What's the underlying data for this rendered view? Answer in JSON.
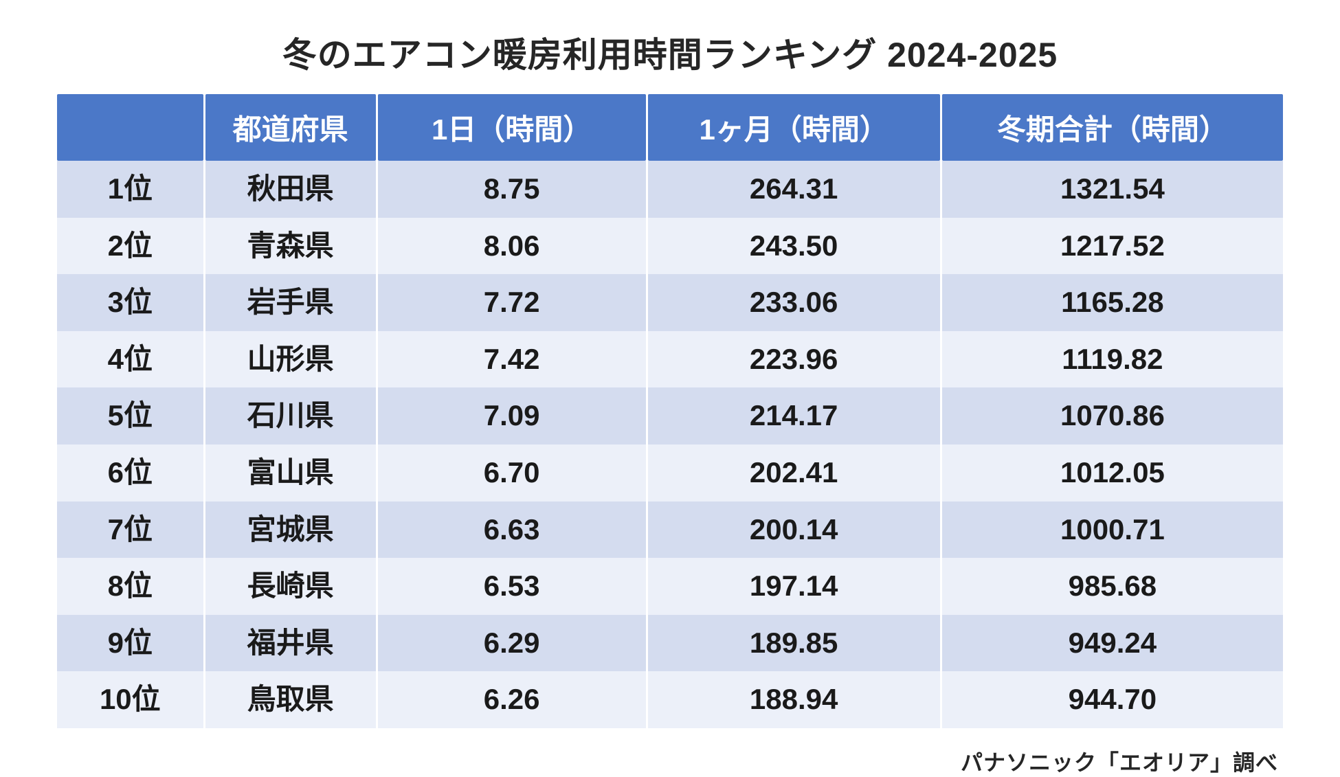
{
  "title": "冬のエアコン暖房利用時間ランキング 2024-2025",
  "footer": "パナソニック「エオリア」調べ",
  "table": {
    "type": "table",
    "header_bg_color": "#4b78c8",
    "header_text_color": "#ffffff",
    "row_odd_bg_color": "#d4dcef",
    "row_even_bg_color": "#ecf0f9",
    "cell_text_color": "#1a1a1a",
    "title_color": "#262626",
    "background_color": "#ffffff",
    "title_fontsize": 50,
    "header_fontsize": 42,
    "cell_fontsize": 42,
    "footer_fontsize": 32,
    "font_weight": 700,
    "columns": [
      {
        "key": "rank",
        "label": "",
        "width_pct": 12,
        "align": "center"
      },
      {
        "key": "pref",
        "label": "都道府県",
        "width_pct": 14,
        "align": "center"
      },
      {
        "key": "day",
        "label": "1日（時間）",
        "width_pct": 22,
        "align": "center"
      },
      {
        "key": "month",
        "label": "1ヶ月（時間）",
        "width_pct": 24,
        "align": "center"
      },
      {
        "key": "total",
        "label": "冬期合計（時間）",
        "width_pct": 28,
        "align": "center"
      }
    ],
    "rows": [
      {
        "rank": "1位",
        "pref": "秋田県",
        "day": "8.75",
        "month": "264.31",
        "total": "1321.54"
      },
      {
        "rank": "2位",
        "pref": "青森県",
        "day": "8.06",
        "month": "243.50",
        "total": "1217.52"
      },
      {
        "rank": "3位",
        "pref": "岩手県",
        "day": "7.72",
        "month": "233.06",
        "total": "1165.28"
      },
      {
        "rank": "4位",
        "pref": "山形県",
        "day": "7.42",
        "month": "223.96",
        "total": "1119.82"
      },
      {
        "rank": "5位",
        "pref": "石川県",
        "day": "7.09",
        "month": "214.17",
        "total": "1070.86"
      },
      {
        "rank": "6位",
        "pref": "富山県",
        "day": "6.70",
        "month": "202.41",
        "total": "1012.05"
      },
      {
        "rank": "7位",
        "pref": "宮城県",
        "day": "6.63",
        "month": "200.14",
        "total": "1000.71"
      },
      {
        "rank": "8位",
        "pref": "長崎県",
        "day": "6.53",
        "month": "197.14",
        "total": "985.68"
      },
      {
        "rank": "9位",
        "pref": "福井県",
        "day": "6.29",
        "month": "189.85",
        "total": "949.24"
      },
      {
        "rank": "10位",
        "pref": "鳥取県",
        "day": "6.26",
        "month": "188.94",
        "total": "944.70"
      }
    ]
  }
}
